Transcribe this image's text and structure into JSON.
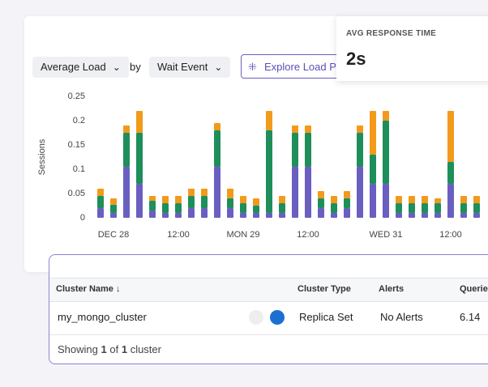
{
  "controls": {
    "metric": "Average Load",
    "by": "by",
    "group": "Wait Event",
    "explore": "Explore Load Pa"
  },
  "card": {
    "title": "AVG RESPONSE TIME",
    "value": "2s"
  },
  "chart_data": {
    "type": "stacked-bar",
    "y_label": "Sessions",
    "categories": [
      null,
      "DEC 28",
      null,
      null,
      null,
      null,
      "12:00",
      null,
      null,
      null,
      null,
      "MON 29",
      null,
      null,
      null,
      null,
      "12:00",
      null,
      null,
      null,
      null,
      null,
      "WED 31",
      null,
      null,
      null,
      null,
      "12:00",
      null,
      null
    ],
    "series": [
      {
        "color": "#6a5fc1",
        "values": [
          0.02,
          0.01,
          0.105,
          0.07,
          0.015,
          0.01,
          0.01,
          0.02,
          0.02,
          0.105,
          0.02,
          0.01,
          0.01,
          0.01,
          0.01,
          0.105,
          0.105,
          0.02,
          0.01,
          0.02,
          0.105,
          0.07,
          0.07,
          0.01,
          0.01,
          0.01,
          0.01,
          0.07,
          0.01,
          0.01
        ]
      },
      {
        "color": "#1e8f5a",
        "values": [
          0.025,
          0.017,
          0.07,
          0.105,
          0.02,
          0.02,
          0.02,
          0.025,
          0.025,
          0.075,
          0.02,
          0.02,
          0.015,
          0.17,
          0.02,
          0.07,
          0.07,
          0.02,
          0.02,
          0.02,
          0.07,
          0.06,
          0.13,
          0.02,
          0.02,
          0.02,
          0.02,
          0.045,
          0.02,
          0.02
        ]
      },
      {
        "color": "#f29a1c",
        "values": [
          0.015,
          0.013,
          0.015,
          0.045,
          0.01,
          0.015,
          0.015,
          0.015,
          0.015,
          0.015,
          0.02,
          0.015,
          0.015,
          0.04,
          0.015,
          0.015,
          0.015,
          0.015,
          0.015,
          0.015,
          0.015,
          0.09,
          0.02,
          0.015,
          0.015,
          0.015,
          0.01,
          0.105,
          0.015,
          0.015
        ]
      }
    ],
    "ylim": [
      0,
      0.25
    ],
    "yticks": [
      0,
      0.05,
      0.1,
      0.15,
      0.2,
      0.25
    ],
    "grid": false
  },
  "table": {
    "headers": [
      "Cluster Name",
      "Cluster Type",
      "Alerts",
      "Queries"
    ],
    "rows": [
      [
        "my_mongo_cluster",
        "Replica Set",
        "No Alerts",
        "6.14"
      ]
    ],
    "footer": [
      "Showing",
      "1",
      "of",
      "1",
      "cluster"
    ]
  }
}
